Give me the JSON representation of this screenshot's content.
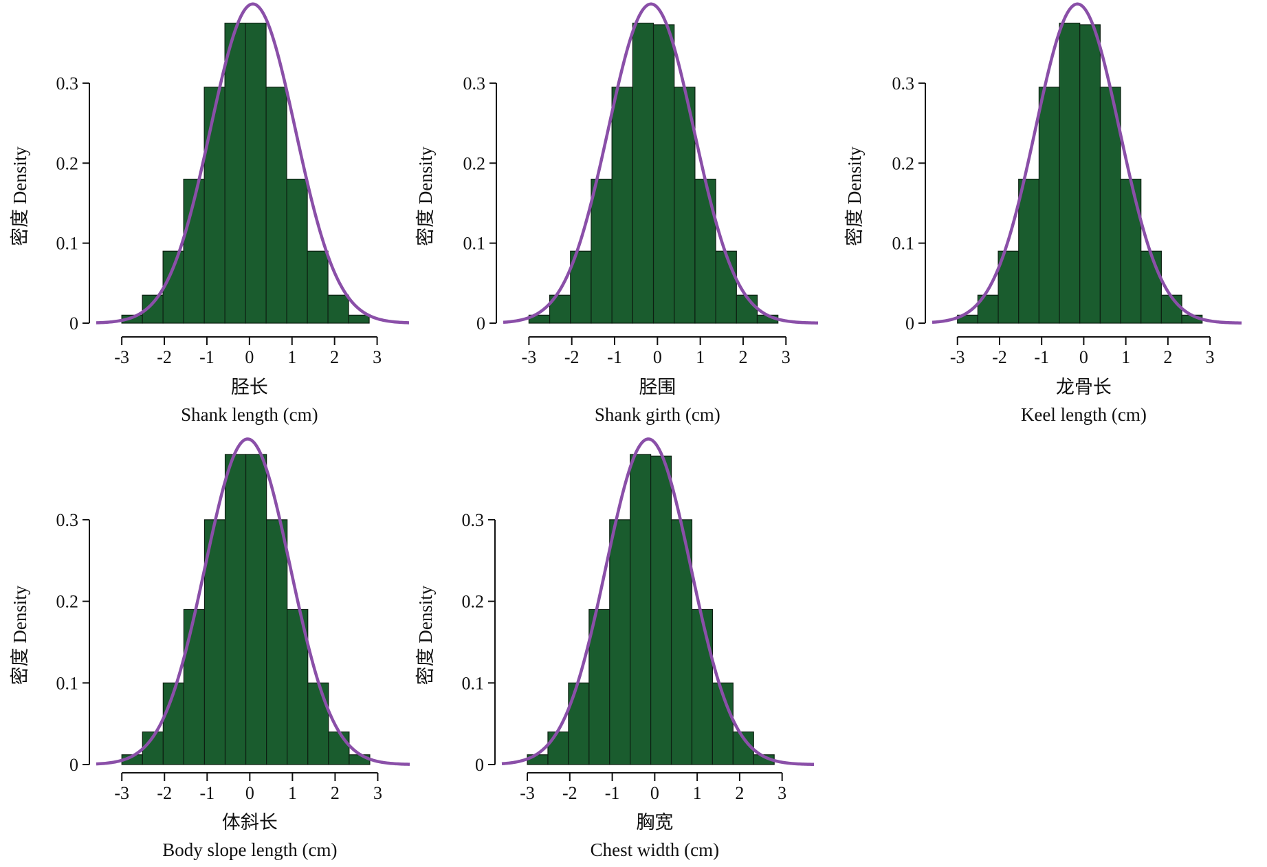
{
  "colors": {
    "bar_fill": "#1a5c2e",
    "bar_stroke": "#0d1f12",
    "curve": "#8a4fa8",
    "axis": "#111111"
  },
  "chart_data": [
    {
      "type": "bar",
      "overlay": "normal density curve",
      "title": "",
      "ylabel": "密度 Density",
      "xlabel_cn": "胫长",
      "xlabel_en": "Shank length (cm)",
      "xlim": [
        -3.6,
        3.75
      ],
      "ylim": [
        0,
        0.385
      ],
      "xticks": [
        -3,
        -2,
        -1,
        0,
        1,
        2,
        3
      ],
      "xtick_labels": [
        "-3",
        "-2",
        "-1",
        "0",
        "1",
        "2",
        "3"
      ],
      "yticks": [
        0,
        0.1,
        0.2,
        0.3
      ],
      "ytick_labels": [
        "0",
        "0.1",
        "0.2",
        "0.3"
      ],
      "bin_width": 0.4845,
      "bin_start": -3.0,
      "values": [
        0.01,
        0.035,
        0.09,
        0.18,
        0.295,
        0.375,
        0.375,
        0.295,
        0.18,
        0.09,
        0.035,
        0.01
      ],
      "curve": {
        "mean": 0.08,
        "sd": 1.0
      }
    },
    {
      "type": "bar",
      "overlay": "normal density curve",
      "title": "",
      "ylabel": "密度 Density",
      "xlabel_cn": "胫围",
      "xlabel_en": "Shank girth (cm)",
      "xlim": [
        -3.6,
        3.75
      ],
      "ylim": [
        0,
        0.385
      ],
      "xticks": [
        -3,
        -2,
        -1,
        0,
        1,
        2,
        3
      ],
      "xtick_labels": [
        "-3",
        "-2",
        "-1",
        "0",
        "1",
        "2",
        "3"
      ],
      "yticks": [
        0,
        0.1,
        0.2,
        0.3
      ],
      "ytick_labels": [
        "0",
        "0.1",
        "0.2",
        "0.3"
      ],
      "bin_width": 0.4845,
      "bin_start": -3.0,
      "values": [
        0.01,
        0.035,
        0.09,
        0.18,
        0.295,
        0.375,
        0.373,
        0.295,
        0.18,
        0.09,
        0.035,
        0.01
      ],
      "curve": {
        "mean": -0.15,
        "sd": 1.0
      }
    },
    {
      "type": "bar",
      "overlay": "normal density curve",
      "title": "",
      "ylabel": "密度 Density",
      "xlabel_cn": "龙骨长",
      "xlabel_en": "Keel length (cm)",
      "xlim": [
        -3.6,
        3.75
      ],
      "ylim": [
        0,
        0.385
      ],
      "xticks": [
        -3,
        -2,
        -1,
        0,
        1,
        2,
        3
      ],
      "xtick_labels": [
        "-3",
        "-2",
        "-1",
        "0",
        "1",
        "2",
        "3"
      ],
      "yticks": [
        0,
        0.1,
        0.2,
        0.3
      ],
      "ytick_labels": [
        "0",
        "0.1",
        "0.2",
        "0.3"
      ],
      "bin_width": 0.4845,
      "bin_start": -3.0,
      "values": [
        0.01,
        0.035,
        0.09,
        0.18,
        0.295,
        0.375,
        0.373,
        0.295,
        0.18,
        0.09,
        0.035,
        0.01
      ],
      "curve": {
        "mean": -0.15,
        "sd": 1.0
      }
    },
    {
      "type": "bar",
      "overlay": "normal density curve",
      "title": "",
      "ylabel": "密度 Density",
      "xlabel_cn": "体斜长",
      "xlabel_en": "Body slope length (cm)",
      "xlim": [
        -3.6,
        3.75
      ],
      "ylim": [
        0,
        0.385
      ],
      "xticks": [
        -3,
        -2,
        -1,
        0,
        1,
        2,
        3
      ],
      "xtick_labels": [
        "-3",
        "-2",
        "-1",
        "0",
        "1",
        "2",
        "3"
      ],
      "yticks": [
        0,
        0.1,
        0.2,
        0.3
      ],
      "ytick_labels": [
        "0",
        "0.1",
        "0.2",
        "0.3"
      ],
      "bin_width": 0.4845,
      "bin_start": -3.0,
      "values": [
        0.012,
        0.04,
        0.1,
        0.19,
        0.3,
        0.38,
        0.38,
        0.3,
        0.19,
        0.1,
        0.04,
        0.012
      ],
      "curve": {
        "mean": -0.05,
        "sd": 1.0
      }
    },
    {
      "type": "bar",
      "overlay": "normal density curve",
      "title": "",
      "ylabel": "密度 Density",
      "xlabel_cn": "胸宽",
      "xlabel_en": "Chest width (cm)",
      "xlim": [
        -3.6,
        3.75
      ],
      "ylim": [
        0,
        0.385
      ],
      "xticks": [
        -3,
        -2,
        -1,
        0,
        1,
        2,
        3
      ],
      "xtick_labels": [
        "-3",
        "-2",
        "-1",
        "0",
        "1",
        "2",
        "3"
      ],
      "yticks": [
        0,
        0.1,
        0.2,
        0.3
      ],
      "ytick_labels": [
        "0",
        "0.1",
        "0.2",
        "0.3"
      ],
      "bin_width": 0.4845,
      "bin_start": -3.0,
      "values": [
        0.012,
        0.04,
        0.1,
        0.19,
        0.3,
        0.38,
        0.378,
        0.3,
        0.19,
        0.1,
        0.04,
        0.012
      ],
      "curve": {
        "mean": -0.15,
        "sd": 1.0
      }
    }
  ]
}
